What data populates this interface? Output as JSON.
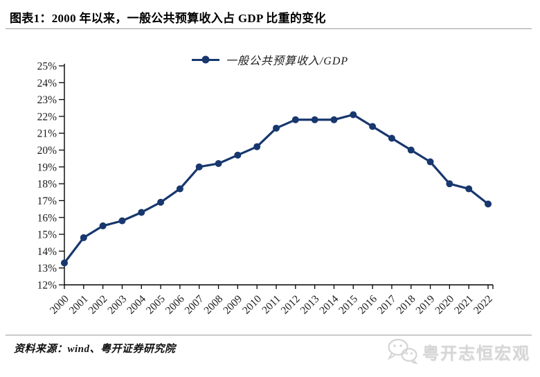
{
  "header": {
    "title": "图表1：2000 年以来，一般公共预算收入占 GDP 比重的变化"
  },
  "chart_data": {
    "type": "line",
    "title": "图表1：2000 年以来，一般公共预算收入占 GDP 比重的变化",
    "legend": "一般公共预算收入/GDP",
    "unit": "%",
    "categories": [
      "2000",
      "2001",
      "2002",
      "2003",
      "2004",
      "2005",
      "2006",
      "2007",
      "2008",
      "2009",
      "2010",
      "2011",
      "2012",
      "2013",
      "2014",
      "2015",
      "2016",
      "2017",
      "2018",
      "2019",
      "2020",
      "2021",
      "2022"
    ],
    "series": [
      {
        "name": "一般公共预算收入/GDP",
        "values": [
          13.3,
          14.8,
          15.5,
          15.8,
          16.3,
          16.9,
          17.7,
          19.0,
          19.2,
          19.7,
          20.2,
          21.3,
          21.8,
          21.8,
          21.8,
          22.1,
          21.4,
          20.7,
          20.0,
          19.3,
          18.0,
          17.7,
          16.8
        ]
      }
    ],
    "ylim": [
      12,
      25
    ],
    "yticks": [
      "25%",
      "24%",
      "23%",
      "22%",
      "21%",
      "20%",
      "19%",
      "18%",
      "17%",
      "16%",
      "15%",
      "14%",
      "13%",
      "12%"
    ],
    "grid": false,
    "legend_position": "top-center",
    "line_color": "#17376e",
    "axis_color": "#000000"
  },
  "footer": {
    "source": "资料来源：wind、粤开证券研究院",
    "watermark": "粤开志恒宏观",
    "watermark_icon": "wechat-icon"
  }
}
